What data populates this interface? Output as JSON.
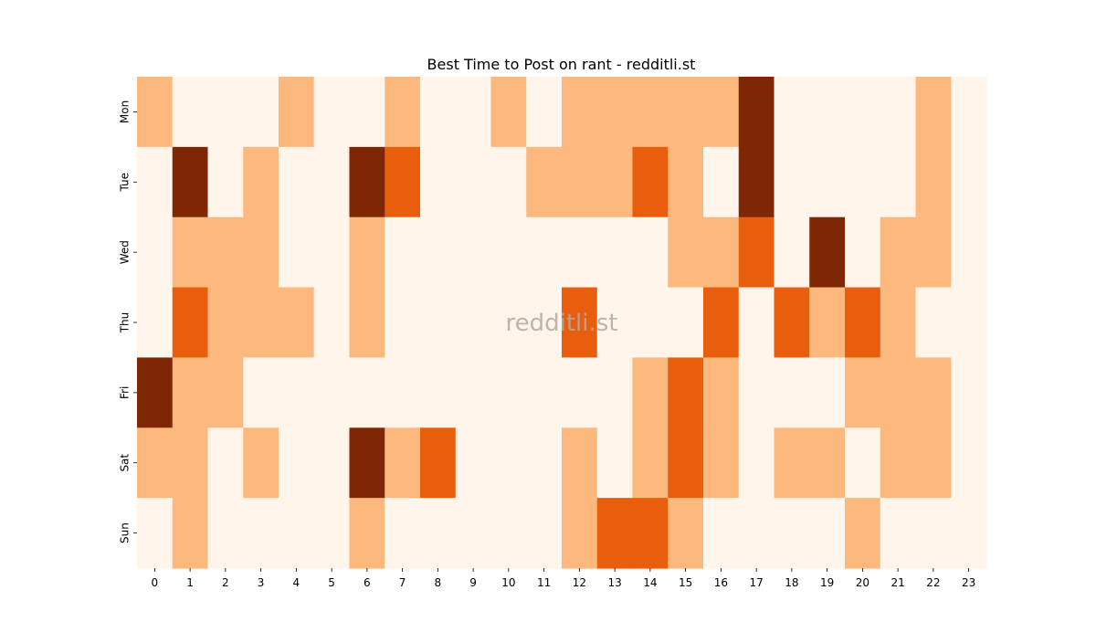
{
  "chart_data": {
    "type": "heatmap",
    "title": "Best Time to Post on rant - redditli.st",
    "watermark": "redditli.st",
    "xlabel": "",
    "ylabel": "",
    "x_ticks": [
      "0",
      "1",
      "2",
      "3",
      "4",
      "5",
      "6",
      "7",
      "8",
      "9",
      "10",
      "11",
      "12",
      "13",
      "14",
      "15",
      "16",
      "17",
      "18",
      "19",
      "20",
      "21",
      "22",
      "23"
    ],
    "y_ticks": [
      "Mon",
      "Tue",
      "Wed",
      "Thu",
      "Fri",
      "Sat",
      "Sun"
    ],
    "levels": 4,
    "colormap": [
      "#fff5eb",
      "#fdb87e",
      "#e95e0d",
      "#7f2704"
    ],
    "grid": false,
    "legend": "none",
    "values": [
      [
        1,
        0,
        0,
        0,
        1,
        0,
        0,
        1,
        0,
        0,
        1,
        0,
        1,
        1,
        1,
        1,
        1,
        3,
        0,
        0,
        0,
        0,
        1,
        0
      ],
      [
        0,
        3,
        0,
        1,
        0,
        0,
        3,
        2,
        0,
        0,
        0,
        1,
        1,
        1,
        2,
        1,
        0,
        3,
        0,
        0,
        0,
        0,
        1,
        0
      ],
      [
        0,
        1,
        1,
        1,
        0,
        0,
        1,
        0,
        0,
        0,
        0,
        0,
        0,
        0,
        0,
        1,
        1,
        2,
        0,
        3,
        0,
        1,
        1,
        0
      ],
      [
        0,
        2,
        1,
        1,
        1,
        0,
        1,
        0,
        0,
        0,
        0,
        0,
        2,
        0,
        0,
        0,
        2,
        0,
        2,
        1,
        2,
        1,
        0,
        0
      ],
      [
        3,
        1,
        1,
        0,
        0,
        0,
        0,
        0,
        0,
        0,
        0,
        0,
        0,
        0,
        1,
        2,
        1,
        0,
        0,
        0,
        1,
        1,
        1,
        0
      ],
      [
        1,
        1,
        0,
        1,
        0,
        0,
        3,
        1,
        2,
        0,
        0,
        0,
        1,
        0,
        1,
        2,
        1,
        0,
        1,
        1,
        0,
        1,
        1,
        0
      ],
      [
        0,
        1,
        0,
        0,
        0,
        0,
        1,
        0,
        0,
        0,
        0,
        0,
        1,
        2,
        2,
        1,
        0,
        0,
        0,
        0,
        1,
        0,
        0,
        0
      ]
    ]
  }
}
